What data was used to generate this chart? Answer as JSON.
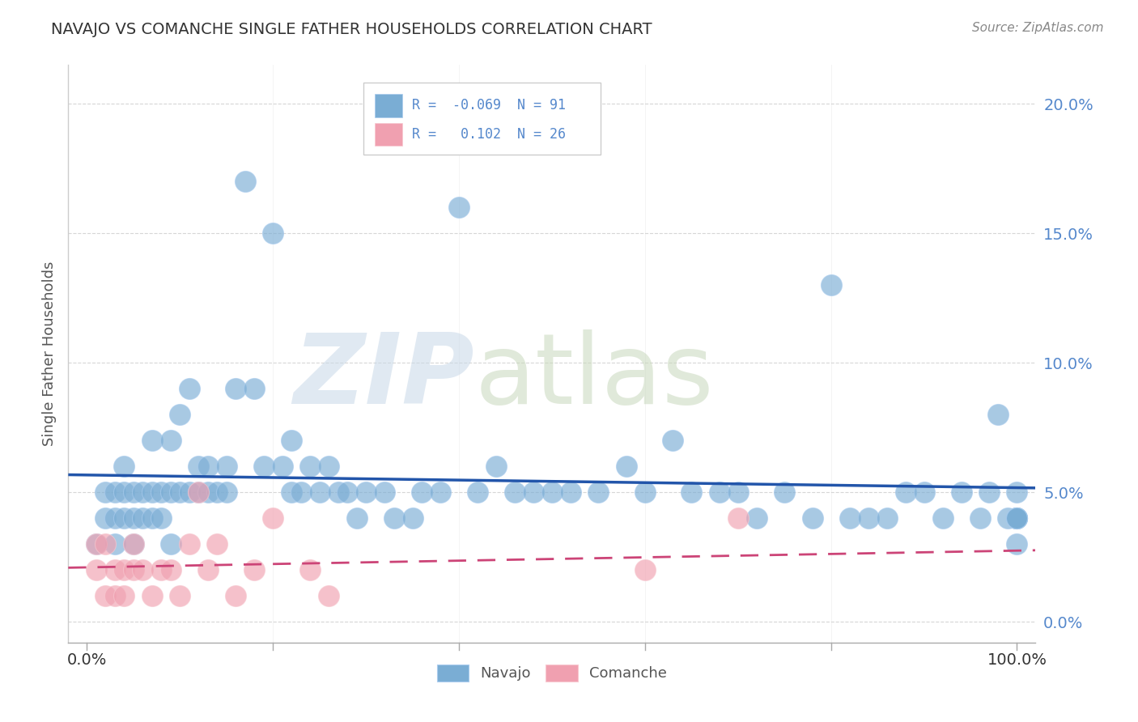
{
  "title": "NAVAJO VS COMANCHE SINGLE FATHER HOUSEHOLDS CORRELATION CHART",
  "source": "Source: ZipAtlas.com",
  "ylabel": "Single Father Households",
  "navajo_R": -0.069,
  "navajo_N": 91,
  "comanche_R": 0.102,
  "comanche_N": 26,
  "xlim": [
    -0.02,
    1.02
  ],
  "ylim": [
    -0.008,
    0.215
  ],
  "yticks": [
    0.0,
    0.05,
    0.1,
    0.15,
    0.2
  ],
  "ytick_labels": [
    "0.0%",
    "5.0%",
    "10.0%",
    "15.0%",
    "20.0%"
  ],
  "navajo_color": "#7aadd4",
  "navajo_edge_color": "#aaccee",
  "comanche_color": "#f0a0b0",
  "comanche_edge_color": "#f8c8d0",
  "navajo_line_color": "#2255aa",
  "comanche_line_color": "#cc4477",
  "background_color": "#ffffff",
  "grid_color": "#cccccc",
  "title_color": "#333333",
  "tick_color": "#5588cc",
  "navajo_x": [
    0.01,
    0.02,
    0.02,
    0.03,
    0.03,
    0.03,
    0.04,
    0.04,
    0.04,
    0.05,
    0.05,
    0.05,
    0.06,
    0.06,
    0.07,
    0.07,
    0.07,
    0.08,
    0.08,
    0.09,
    0.09,
    0.09,
    0.1,
    0.1,
    0.11,
    0.11,
    0.12,
    0.12,
    0.13,
    0.13,
    0.14,
    0.15,
    0.15,
    0.16,
    0.17,
    0.18,
    0.19,
    0.2,
    0.21,
    0.22,
    0.22,
    0.23,
    0.24,
    0.25,
    0.26,
    0.27,
    0.28,
    0.29,
    0.3,
    0.32,
    0.33,
    0.35,
    0.36,
    0.38,
    0.4,
    0.42,
    0.44,
    0.46,
    0.48,
    0.5,
    0.52,
    0.55,
    0.58,
    0.6,
    0.63,
    0.65,
    0.68,
    0.7,
    0.72,
    0.75,
    0.78,
    0.8,
    0.82,
    0.84,
    0.86,
    0.88,
    0.9,
    0.92,
    0.94,
    0.96,
    0.97,
    0.98,
    0.99,
    1.0,
    1.0,
    1.0,
    1.0,
    1.0,
    1.0,
    1.0,
    1.0
  ],
  "navajo_y": [
    0.03,
    0.04,
    0.05,
    0.03,
    0.04,
    0.05,
    0.04,
    0.05,
    0.06,
    0.03,
    0.04,
    0.05,
    0.04,
    0.05,
    0.04,
    0.05,
    0.07,
    0.04,
    0.05,
    0.03,
    0.05,
    0.07,
    0.05,
    0.08,
    0.05,
    0.09,
    0.05,
    0.06,
    0.05,
    0.06,
    0.05,
    0.05,
    0.06,
    0.09,
    0.17,
    0.09,
    0.06,
    0.15,
    0.06,
    0.05,
    0.07,
    0.05,
    0.06,
    0.05,
    0.06,
    0.05,
    0.05,
    0.04,
    0.05,
    0.05,
    0.04,
    0.04,
    0.05,
    0.05,
    0.16,
    0.05,
    0.06,
    0.05,
    0.05,
    0.05,
    0.05,
    0.05,
    0.06,
    0.05,
    0.07,
    0.05,
    0.05,
    0.05,
    0.04,
    0.05,
    0.04,
    0.13,
    0.04,
    0.04,
    0.04,
    0.05,
    0.05,
    0.04,
    0.05,
    0.04,
    0.05,
    0.08,
    0.04,
    0.03,
    0.04,
    0.04,
    0.04,
    0.04,
    0.04,
    0.04,
    0.05
  ],
  "comanche_x": [
    0.01,
    0.01,
    0.02,
    0.02,
    0.03,
    0.03,
    0.04,
    0.04,
    0.05,
    0.05,
    0.06,
    0.07,
    0.08,
    0.09,
    0.1,
    0.11,
    0.12,
    0.13,
    0.14,
    0.16,
    0.18,
    0.2,
    0.24,
    0.26,
    0.6,
    0.7
  ],
  "comanche_y": [
    0.02,
    0.03,
    0.01,
    0.03,
    0.01,
    0.02,
    0.01,
    0.02,
    0.02,
    0.03,
    0.02,
    0.01,
    0.02,
    0.02,
    0.01,
    0.03,
    0.05,
    0.02,
    0.03,
    0.01,
    0.02,
    0.04,
    0.02,
    0.01,
    0.02,
    0.04
  ]
}
